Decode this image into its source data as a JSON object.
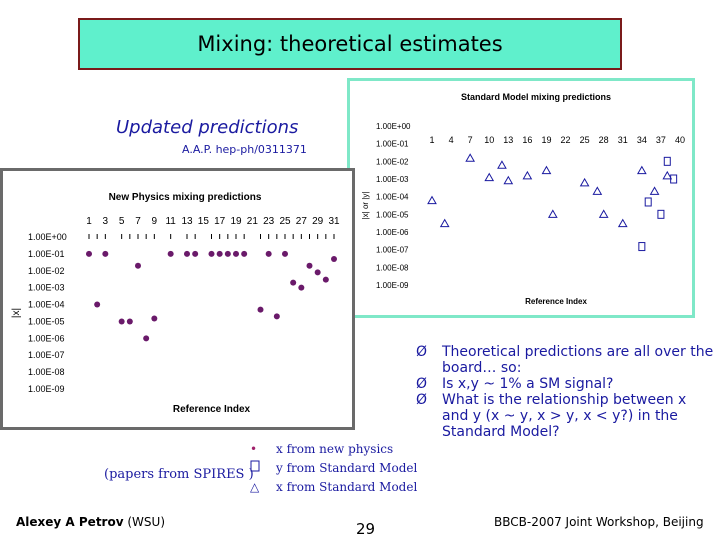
{
  "slide": {
    "title": "Mixing: theoretical estimates",
    "subtitle": "Updated predictions",
    "citation": "A.A.P. hep-ph/0311371",
    "bullets": [
      "Theoretical predictions are all over the board… so:",
      "Is x,y ~ 1% a SM signal?",
      "What is the relationship between x and y (x ~ y, x > y, x < y?) in the Standard Model?"
    ],
    "bullet_marker": "Ø",
    "legend": [
      {
        "symbol": "•",
        "label": "x from new physics",
        "color": "#a0206a"
      },
      {
        "symbol": "",
        "label": "y from Standard Model",
        "color": "#1a1aa0"
      },
      {
        "symbol": "△",
        "label": "x from Standard Model",
        "color": "#1a1aa0"
      }
    ],
    "papers_note": "(papers from SPIRES )",
    "footer": {
      "author_bold": "Alexey A Petrov",
      "author_affil": "(WSU)",
      "page": "29",
      "event": "BBCB-2007 Joint Workshop, Beijing"
    }
  },
  "colors": {
    "title_bg": "#5ff0cc",
    "title_border": "#7a1a1a",
    "text_blue": "#1a1aa0",
    "np_marker": "#6a1a6a",
    "sm_marker": "#1a1aa0",
    "sm_frame": "#7fe8c8"
  },
  "chart_data": [
    {
      "type": "scatter",
      "title": "Standard Model mixing predictions",
      "xlabel": "Reference Index",
      "ylabel": "|x| or |y|",
      "scale": "log",
      "ylim": [
        1e-09,
        1
      ],
      "y_tick_labels": [
        "1.00E+00",
        "1.00E-01",
        "1.00E-02",
        "1.00E-03",
        "1.00E-04",
        "1.00E-05",
        "1.00E-06",
        "1.00E-07",
        "1.00E-08",
        "1.00E-09"
      ],
      "x_tick_labels": [
        "1",
        "4",
        "7",
        "10",
        "13",
        "16",
        "19",
        "22",
        "25",
        "28",
        "31",
        "34",
        "37",
        "40"
      ],
      "xlim": [
        1,
        40
      ],
      "series": [
        {
          "name": "x from Standard Model",
          "marker": "triangle",
          "points": [
            [
              1,
              6e-05
            ],
            [
              3,
              3e-06
            ],
            [
              7,
              0.015
            ],
            [
              10,
              0.0012
            ],
            [
              12,
              0.006
            ],
            [
              13,
              0.0008
            ],
            [
              16,
              0.0015
            ],
            [
              19,
              0.003
            ],
            [
              20,
              1e-05
            ],
            [
              25,
              0.0006
            ],
            [
              27,
              0.0002
            ],
            [
              28,
              1e-05
            ],
            [
              31,
              3e-06
            ],
            [
              34,
              0.003
            ],
            [
              36,
              0.0002
            ],
            [
              38,
              0.0015
            ]
          ]
        },
        {
          "name": "y from Standard Model",
          "marker": "square",
          "points": [
            [
              37,
              1e-05
            ],
            [
              38,
              0.01
            ],
            [
              34,
              1.5e-07
            ],
            [
              39,
              0.001
            ],
            [
              35,
              5e-05
            ]
          ]
        }
      ]
    },
    {
      "type": "scatter",
      "title": "New Physics mixing predictions",
      "xlabel": "Reference Index",
      "ylabel": "|x|",
      "scale": "log",
      "ylim": [
        1e-09,
        1
      ],
      "y_tick_labels": [
        "1.00E+00",
        "1.00E-01",
        "1.00E-02",
        "1.00E-03",
        "1.00E-04",
        "1.00E-05",
        "1.00E-06",
        "1.00E-07",
        "1.00E-08",
        "1.00E-09"
      ],
      "x_tick_labels": [
        "1",
        "3",
        "5",
        "7",
        "9",
        "11",
        "13",
        "15",
        "17",
        "19",
        "21",
        "23",
        "25",
        "27",
        "29",
        "31"
      ],
      "xlim": [
        1,
        31
      ],
      "series": [
        {
          "name": "x from new physics",
          "marker": "dot",
          "points": [
            [
              1,
              0.1
            ],
            [
              2,
              0.0001
            ],
            [
              3,
              0.1
            ],
            [
              5,
              1e-05
            ],
            [
              6,
              1e-05
            ],
            [
              7,
              0.02
            ],
            [
              8,
              1e-06
            ],
            [
              9,
              1.5e-05
            ],
            [
              11,
              0.1
            ],
            [
              13,
              0.1
            ],
            [
              14,
              0.1
            ],
            [
              16,
              0.1
            ],
            [
              17,
              0.1
            ],
            [
              18,
              0.1
            ],
            [
              19,
              0.1
            ],
            [
              20,
              0.1
            ],
            [
              22,
              5e-05
            ],
            [
              23,
              0.1
            ],
            [
              24,
              2e-05
            ],
            [
              25,
              0.1
            ],
            [
              26,
              0.002
            ],
            [
              27,
              0.001
            ],
            [
              28,
              0.02
            ],
            [
              29,
              0.008
            ],
            [
              30,
              0.003
            ],
            [
              31,
              0.05
            ]
          ]
        }
      ]
    }
  ]
}
